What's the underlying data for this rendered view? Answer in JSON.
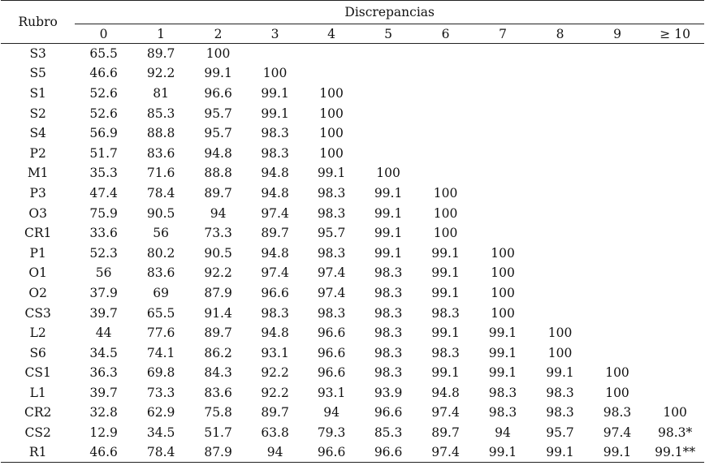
{
  "header": {
    "rubro": "Rubro",
    "discrepancias": "Discrepancias",
    "columns": [
      "0",
      "1",
      "2",
      "3",
      "4",
      "5",
      "6",
      "7",
      "8",
      "9",
      "≥ 10"
    ]
  },
  "rows": [
    {
      "rubro": "S3",
      "v": [
        "65.5",
        "89.7",
        "100",
        "",
        "",
        "",
        "",
        "",
        "",
        "",
        ""
      ]
    },
    {
      "rubro": "S5",
      "v": [
        "46.6",
        "92.2",
        "99.1",
        "100",
        "",
        "",
        "",
        "",
        "",
        "",
        ""
      ]
    },
    {
      "rubro": "S1",
      "v": [
        "52.6",
        "81",
        "96.6",
        "99.1",
        "100",
        "",
        "",
        "",
        "",
        "",
        ""
      ]
    },
    {
      "rubro": "S2",
      "v": [
        "52.6",
        "85.3",
        "95.7",
        "99.1",
        "100",
        "",
        "",
        "",
        "",
        "",
        ""
      ]
    },
    {
      "rubro": "S4",
      "v": [
        "56.9",
        "88.8",
        "95.7",
        "98.3",
        "100",
        "",
        "",
        "",
        "",
        "",
        ""
      ]
    },
    {
      "rubro": "P2",
      "v": [
        "51.7",
        "83.6",
        "94.8",
        "98.3",
        "100",
        "",
        "",
        "",
        "",
        "",
        ""
      ]
    },
    {
      "rubro": "M1",
      "v": [
        "35.3",
        "71.6",
        "88.8",
        "94.8",
        "99.1",
        "100",
        "",
        "",
        "",
        "",
        ""
      ]
    },
    {
      "rubro": "P3",
      "v": [
        "47.4",
        "78.4",
        "89.7",
        "94.8",
        "98.3",
        "99.1",
        "100",
        "",
        "",
        "",
        ""
      ]
    },
    {
      "rubro": "O3",
      "v": [
        "75.9",
        "90.5",
        "94",
        "97.4",
        "98.3",
        "99.1",
        "100",
        "",
        "",
        "",
        ""
      ]
    },
    {
      "rubro": "CR1",
      "v": [
        "33.6",
        "56",
        "73.3",
        "89.7",
        "95.7",
        "99.1",
        "100",
        "",
        "",
        "",
        ""
      ]
    },
    {
      "rubro": "P1",
      "v": [
        "52.3",
        "80.2",
        "90.5",
        "94.8",
        "98.3",
        "99.1",
        "99.1",
        "100",
        "",
        "",
        ""
      ]
    },
    {
      "rubro": "O1",
      "v": [
        "56",
        "83.6",
        "92.2",
        "97.4",
        "97.4",
        "98.3",
        "99.1",
        "100",
        "",
        "",
        ""
      ]
    },
    {
      "rubro": "O2",
      "v": [
        "37.9",
        "69",
        "87.9",
        "96.6",
        "97.4",
        "98.3",
        "99.1",
        "100",
        "",
        "",
        ""
      ]
    },
    {
      "rubro": "CS3",
      "v": [
        "39.7",
        "65.5",
        "91.4",
        "98.3",
        "98.3",
        "98.3",
        "98.3",
        "100",
        "",
        "",
        ""
      ]
    },
    {
      "rubro": "L2",
      "v": [
        "44",
        "77.6",
        "89.7",
        "94.8",
        "96.6",
        "98.3",
        "99.1",
        "99.1",
        "100",
        "",
        ""
      ]
    },
    {
      "rubro": "S6",
      "v": [
        "34.5",
        "74.1",
        "86.2",
        "93.1",
        "96.6",
        "98.3",
        "98.3",
        "99.1",
        "100",
        "",
        ""
      ]
    },
    {
      "rubro": "CS1",
      "v": [
        "36.3",
        "69.8",
        "84.3",
        "92.2",
        "96.6",
        "98.3",
        "99.1",
        "99.1",
        "99.1",
        "100",
        ""
      ]
    },
    {
      "rubro": "L1",
      "v": [
        "39.7",
        "73.3",
        "83.6",
        "92.2",
        "93.1",
        "93.9",
        "94.8",
        "98.3",
        "98.3",
        "100",
        ""
      ]
    },
    {
      "rubro": "CR2",
      "v": [
        "32.8",
        "62.9",
        "75.8",
        "89.7",
        "94",
        "96.6",
        "97.4",
        "98.3",
        "98.3",
        "98.3",
        "100"
      ]
    },
    {
      "rubro": "CS2",
      "v": [
        "12.9",
        "34.5",
        "51.7",
        "63.8",
        "79.3",
        "85.3",
        "89.7",
        "94",
        "95.7",
        "97.4",
        "98.3*"
      ]
    },
    {
      "rubro": "R1",
      "v": [
        "46.6",
        "78.4",
        "87.9",
        "94",
        "96.6",
        "96.6",
        "97.4",
        "99.1",
        "99.1",
        "99.1",
        "99.1**"
      ]
    }
  ]
}
